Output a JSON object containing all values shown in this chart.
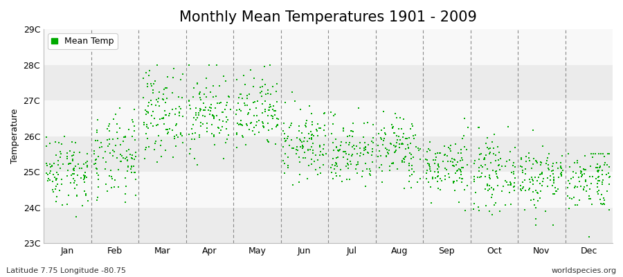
{
  "title": "Monthly Mean Temperatures 1901 - 2009",
  "ylabel": "Temperature",
  "subtitle_left": "Latitude 7.75 Longitude -80.75",
  "subtitle_right": "worldspecies.org",
  "legend_label": "Mean Temp",
  "months": [
    "Jan",
    "Feb",
    "Mar",
    "Apr",
    "May",
    "Jun",
    "Jul",
    "Aug",
    "Sep",
    "Oct",
    "Nov",
    "Dec"
  ],
  "ylim": [
    23.0,
    29.0
  ],
  "yticks": [
    23,
    24,
    25,
    26,
    27,
    28,
    29
  ],
  "ytick_labels": [
    "23C",
    "24C",
    "25C",
    "26C",
    "27C",
    "28C",
    "29C"
  ],
  "dot_color": "#00aa00",
  "marker": "s",
  "marker_size": 3.0,
  "fig_bg_color": "#ffffff",
  "plot_bg_color": "#ffffff",
  "h_band_colors": [
    "#ebebeb",
    "#f8f8f8"
  ],
  "n_years": 109,
  "month_means": [
    25.05,
    25.35,
    26.65,
    26.65,
    26.6,
    25.75,
    25.55,
    25.65,
    25.15,
    24.95,
    24.85,
    24.85
  ],
  "month_stds": [
    0.5,
    0.6,
    0.6,
    0.55,
    0.55,
    0.5,
    0.48,
    0.48,
    0.42,
    0.48,
    0.48,
    0.48
  ],
  "month_mins": [
    23.0,
    23.1,
    24.8,
    25.0,
    25.0,
    23.2,
    24.5,
    24.5,
    23.3,
    23.5,
    23.5,
    23.1
  ],
  "month_maxs": [
    26.5,
    27.5,
    28.0,
    28.0,
    28.5,
    27.6,
    27.1,
    26.7,
    26.5,
    26.4,
    26.3,
    25.5
  ],
  "vline_color": "#888888",
  "title_fontsize": 15,
  "axis_fontsize": 9,
  "tick_fontsize": 9
}
